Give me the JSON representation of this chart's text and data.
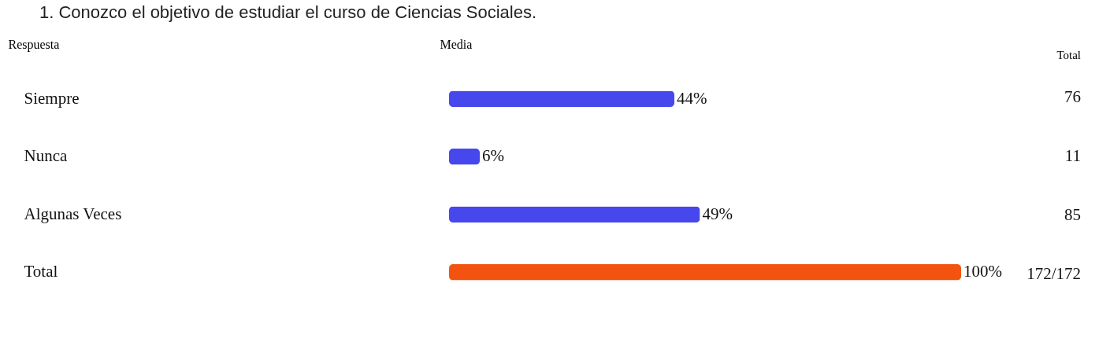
{
  "chart_data": {
    "type": "bar",
    "orientation": "horizontal",
    "title": "1.   Conozco el objetivo de estudiar el curso de Ciencias Sociales.",
    "ylabel": "Respuesta",
    "xlabel": "Media",
    "categories": [
      "Siempre",
      "Nunca",
      "Algunas Veces",
      "Total"
    ],
    "values": [
      44,
      6,
      49,
      100
    ],
    "colors": [
      "#4747ee",
      "#4747ee",
      "#4747ee",
      "#f25410"
    ],
    "value_labels": [
      "44%",
      "6%",
      "49%",
      "100%"
    ],
    "xlim": [
      0,
      100
    ],
    "tick_labels": "y",
    "grid": false,
    "annotations": [
      "Total",
      "76",
      "11",
      "85",
      "172/172"
    ]
  }
}
